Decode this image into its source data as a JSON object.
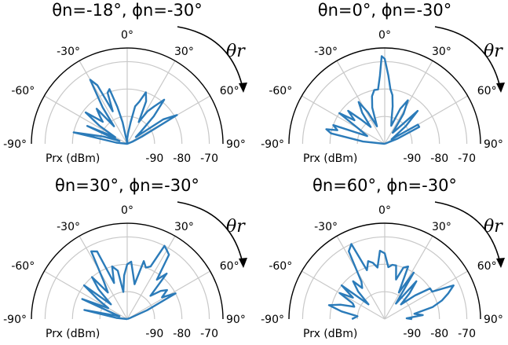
{
  "chart_data": [
    {
      "type": "polar-line",
      "title": "θn=-18°, ϕn=-30°",
      "theta_ticks": [
        "-90°",
        "-60°",
        "-30°",
        "0°",
        "30°",
        "60°",
        "90°"
      ],
      "r_ticks": [
        "-90",
        "-80",
        "-70"
      ],
      "r_label": "Prx (dBm)",
      "rlim": [
        -100,
        -65
      ],
      "annotation": "θr",
      "theta": [
        -90,
        -84,
        -78,
        -73,
        -70,
        -66,
        -61,
        -57,
        -53,
        -48,
        -45,
        -41,
        -37,
        -34,
        -30,
        -27,
        -24,
        -21,
        -18,
        -15,
        -12,
        -9,
        -6,
        -2,
        1,
        5,
        9,
        12,
        16,
        20,
        24,
        28,
        32,
        36,
        40,
        44,
        48,
        52,
        56,
        60,
        64,
        68,
        72,
        76,
        80,
        84,
        90
      ],
      "r": [
        -100,
        -96,
        -80,
        -91,
        -97,
        -84,
        -95,
        -88,
        -81,
        -88,
        -86,
        -83,
        -92,
        -84,
        -73,
        -76,
        -87,
        -80,
        -79,
        -86,
        -92,
        -99,
        -100,
        -100,
        -98,
        -96,
        -92,
        -86,
        -84,
        -80,
        -83,
        -91,
        -86,
        -83,
        -79,
        -86,
        -93,
        -96,
        -84,
        -79,
        -94,
        -98,
        -100,
        -100,
        -100,
        -100,
        -100
      ]
    },
    {
      "type": "polar-line",
      "title": "θn=0°, ϕn=-30°",
      "theta_ticks": [
        "-90°",
        "-60°",
        "-30°",
        "0°",
        "30°",
        "60°",
        "90°"
      ],
      "r_ticks": [
        "-90",
        "-80",
        "-70"
      ],
      "r_label": "Prx (dBm)",
      "rlim": [
        -100,
        -65
      ],
      "annotation": "θr",
      "theta": [
        -90,
        -84,
        -79,
        -76,
        -74,
        -70,
        -66,
        -60,
        -56,
        -52,
        -48,
        -44,
        -40,
        -36,
        -32,
        -28,
        -24,
        -19,
        -15,
        -11,
        -7,
        -4,
        -2,
        0,
        3,
        6,
        9,
        12,
        16,
        20,
        24,
        28,
        32,
        36,
        40,
        45,
        50,
        56,
        60,
        64,
        68,
        72,
        76,
        80,
        84,
        90
      ],
      "r": [
        -100,
        -92,
        -80,
        -78,
        -82,
        -80,
        -93,
        -89,
        -80,
        -86,
        -82,
        -88,
        -92,
        -86,
        -82,
        -87,
        -93,
        -86,
        -82,
        -80,
        -80,
        -75,
        -68,
        -69,
        -75,
        -80,
        -82,
        -86,
        -91,
        -93,
        -86,
        -82,
        -87,
        -95,
        -93,
        -83,
        -90,
        -97,
        -86,
        -86,
        -95,
        -100,
        -100,
        -100,
        -100,
        -100
      ]
    },
    {
      "type": "polar-line",
      "title": "θn=30°, ϕn=-30°",
      "theta_ticks": [
        "-90°",
        "-60°",
        "-30°",
        "0°",
        "30°",
        "60°",
        "90°"
      ],
      "r_ticks": [
        "-90",
        "-80",
        "-70"
      ],
      "r_label": "Prx (dBm)",
      "rlim": [
        -100,
        -65
      ],
      "annotation": "θr",
      "theta": [
        -90,
        -84,
        -78,
        -74,
        -70,
        -66,
        -60,
        -56,
        -52,
        -48,
        -44,
        -40,
        -36,
        -32,
        -28,
        -24,
        -20,
        -16,
        -11,
        -8,
        -4,
        0,
        4,
        8,
        12,
        16,
        20,
        24,
        27,
        30,
        33,
        37,
        41,
        45,
        50,
        54,
        58,
        62,
        66,
        70,
        74,
        78,
        82,
        86,
        90
      ],
      "r": [
        -100,
        -96,
        -84,
        -95,
        -97,
        -82,
        -92,
        -87,
        -80,
        -92,
        -85,
        -80,
        -88,
        -84,
        -72,
        -73,
        -86,
        -80,
        -82,
        -90,
        -84,
        -80,
        -79,
        -84,
        -87,
        -78,
        -80,
        -79,
        -70,
        -71,
        -72,
        -82,
        -78,
        -88,
        -84,
        -82,
        -85,
        -80,
        -92,
        -99,
        -100,
        -100,
        -100,
        -100,
        -100
      ]
    },
    {
      "type": "polar-line",
      "title": "θn=60°, ϕn=-30°",
      "theta_ticks": [
        "-90°",
        "-60°",
        "-30°",
        "0°",
        "30°",
        "60°",
        "90°"
      ],
      "r_ticks": [
        "-90",
        "-80",
        "-70"
      ],
      "r_label": "Prx (dBm)",
      "rlim": [
        -100,
        -65
      ],
      "annotation": "θr",
      "theta": [
        -90,
        -84,
        -80,
        -76,
        -72,
        -68,
        -64,
        -60,
        -56,
        -52,
        -48,
        -44,
        -40,
        -36,
        -32,
        -28,
        -24,
        -20,
        -16,
        -12,
        -8,
        -4,
        0,
        4,
        8,
        12,
        16,
        20,
        24,
        28,
        32,
        36,
        40,
        44,
        48,
        52,
        56,
        60,
        64,
        68,
        72,
        76,
        80,
        84,
        88,
        90
      ],
      "r": [
        -88,
        -90,
        -84,
        -79,
        -83,
        -88,
        -87,
        -81,
        -86,
        -80,
        -92,
        -86,
        -82,
        -86,
        -84,
        -72,
        -70,
        -81,
        -78,
        -79,
        -81,
        -75,
        -76,
        -81,
        -80,
        -80,
        -85,
        -80,
        -79,
        -89,
        -80,
        -93,
        -82,
        -87,
        -92,
        -86,
        -80,
        -80,
        -72,
        -75,
        -78,
        -82,
        -89,
        -86,
        -92,
        -90
      ]
    }
  ]
}
